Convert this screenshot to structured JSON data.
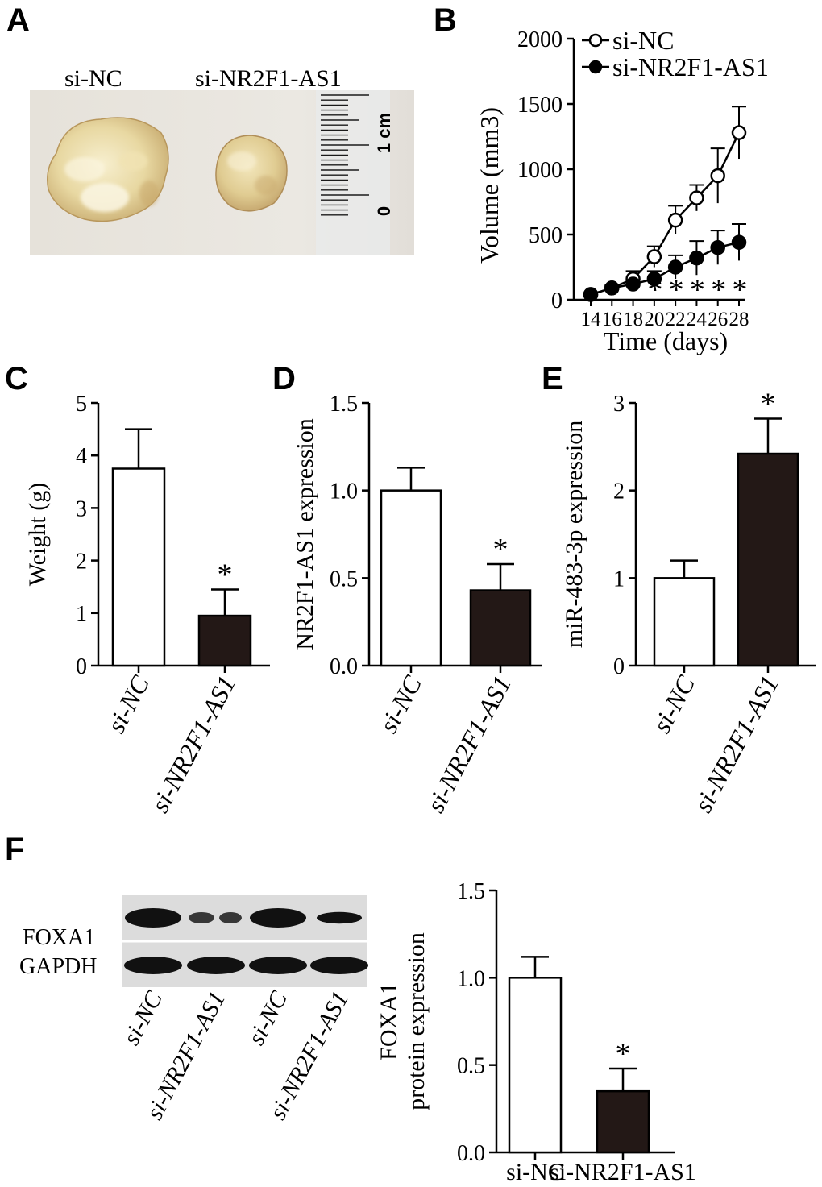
{
  "panels": {
    "A": "A",
    "B": "B",
    "C": "C",
    "D": "D",
    "E": "E",
    "F": "F"
  },
  "photo": {
    "label_left": "si-NC",
    "label_right": "si-NR2F1-AS1",
    "ruler_1cm": "1 cm",
    "ruler_0": "0"
  },
  "blot": {
    "rows": [
      "FOXA1",
      "GAPDH"
    ],
    "lanes": [
      "si-NC",
      "si-NR2F1-AS1",
      "si-NC",
      "si-NR2F1-AS1"
    ],
    "foxa1_intensity": [
      1.0,
      0.35,
      1.0,
      0.6
    ],
    "gapdh_intensity": [
      1.0,
      1.0,
      1.0,
      1.0
    ]
  },
  "chart_data": [
    {
      "id": "B",
      "type": "line",
      "xlabel": "Time (days)",
      "ylabel": "Volume (mm3)",
      "x": [
        14,
        16,
        18,
        20,
        22,
        24,
        26,
        28
      ],
      "xticks": [
        "14",
        "16",
        "18",
        "20",
        "22",
        "24",
        "26",
        "28"
      ],
      "ylim": [
        0,
        2000
      ],
      "yticks": [
        "0",
        "500",
        "1000",
        "1500",
        "2000"
      ],
      "legend": "top-left",
      "series": [
        {
          "name": "si-NC",
          "marker": "open-circle",
          "values": [
            40,
            90,
            160,
            330,
            610,
            780,
            950,
            1280
          ],
          "errors": [
            10,
            20,
            60,
            80,
            110,
            100,
            210,
            200
          ]
        },
        {
          "name": "si-NR2F1-AS1",
          "marker": "filled-circle",
          "values": [
            40,
            90,
            120,
            160,
            250,
            320,
            400,
            440
          ],
          "errors": [
            10,
            15,
            30,
            60,
            90,
            130,
            130,
            140
          ],
          "significance": [
            "",
            "",
            "",
            "*",
            "*",
            "*",
            "*",
            "*"
          ]
        }
      ]
    },
    {
      "id": "C",
      "type": "bar",
      "ylabel": "Weight (g)",
      "categories": [
        "si-NC",
        "si-NR2F1-AS1"
      ],
      "values": [
        3.75,
        0.95
      ],
      "errors": [
        0.75,
        0.5
      ],
      "significance": [
        "",
        "*"
      ],
      "ylim": [
        0,
        5
      ],
      "yticks": [
        "0",
        "1",
        "2",
        "3",
        "4",
        "5"
      ],
      "fills": [
        "#ffffff",
        "#231816"
      ]
    },
    {
      "id": "D",
      "type": "bar",
      "ylabel": "NR2F1-AS1 expression",
      "categories": [
        "si-NC",
        "si-NR2F1-AS1"
      ],
      "values": [
        1.0,
        0.43
      ],
      "errors": [
        0.13,
        0.15
      ],
      "significance": [
        "",
        "*"
      ],
      "ylim": [
        0,
        1.5
      ],
      "yticks": [
        "0.0",
        "0.5",
        "1.0",
        "1.5"
      ],
      "fills": [
        "#ffffff",
        "#231816"
      ]
    },
    {
      "id": "E",
      "type": "bar",
      "ylabel": "miR-483-3p expression",
      "categories": [
        "si-NC",
        "si-NR2F1-AS1"
      ],
      "values": [
        1.0,
        2.42
      ],
      "errors": [
        0.2,
        0.4
      ],
      "significance": [
        "",
        "*"
      ],
      "ylim": [
        0,
        3
      ],
      "yticks": [
        "0",
        "1",
        "2",
        "3"
      ],
      "fills": [
        "#ffffff",
        "#231816"
      ]
    },
    {
      "id": "F",
      "type": "bar",
      "ylabel": [
        "FOXA1",
        "protein expression"
      ],
      "categories": [
        "si-NC",
        "si-NR2F1-AS1"
      ],
      "values": [
        1.0,
        0.35
      ],
      "errors": [
        0.12,
        0.13
      ],
      "significance": [
        "",
        "*"
      ],
      "ylim": [
        0,
        1.5
      ],
      "yticks": [
        "0.0",
        "0.5",
        "1.0",
        "1.5"
      ],
      "fills": [
        "#ffffff",
        "#231816"
      ]
    }
  ]
}
